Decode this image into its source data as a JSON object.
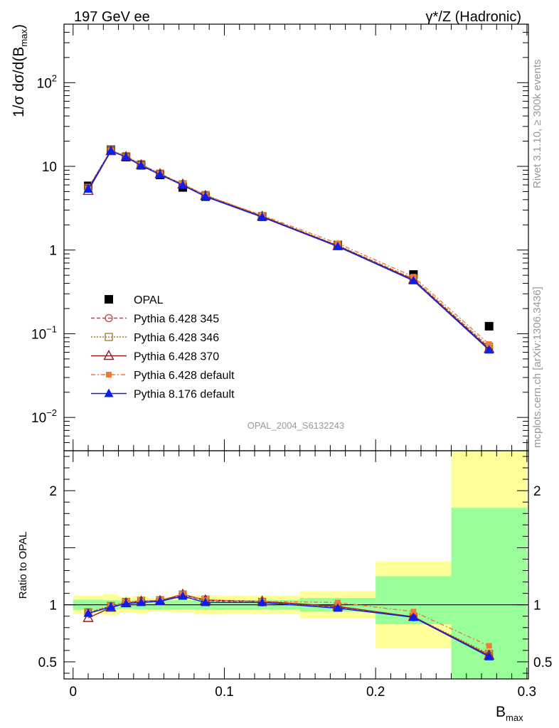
{
  "header": {
    "energy_label": "197 GeV ee",
    "process_label": "γ*/Z (Hadronic)",
    "rivet_label": "Rivet 3.1.10, ≥ 300k events",
    "source_label": "mcplots.cern.ch [arXiv:1306.3436]",
    "analysis_label": "OPAL_2004_S6132243"
  },
  "chart_data": {
    "type": "line",
    "title": "197 GeV ee",
    "xlabel": "B_max",
    "xlabel_main": "B",
    "xlabel_sub": "max",
    "ylabel": "1/σ dσ/d(B_max)",
    "ylabel_main": "1/σ dσ/d(B",
    "ylabel_sub": "max",
    "ylabel_close": ")",
    "ratio_ylabel": "Ratio to OPAL",
    "xlim": [
      -0.006,
      0.301
    ],
    "ylim": [
      0.004,
      500
    ],
    "yscale": "log",
    "ratio_ylim": [
      0.35,
      2.35
    ],
    "x_ticks": [
      "0",
      "0.1",
      "0.2",
      "0.3"
    ],
    "y_tick_labels": [
      {
        "base": "10",
        "exp": "2",
        "value": 100
      },
      {
        "base": "10",
        "exp": "",
        "value": 10
      },
      {
        "base": "1",
        "exp": "",
        "value": 1
      },
      {
        "base": "10",
        "exp": "−1",
        "value": 0.1
      },
      {
        "base": "10",
        "exp": "−2",
        "value": 0.01
      }
    ],
    "ratio_ticks": [
      "0.5",
      "1",
      "2"
    ],
    "ratio_tick_values": [
      0.5,
      1,
      2
    ],
    "x": [
      0.01,
      0.025,
      0.035,
      0.045,
      0.0575,
      0.0725,
      0.0875,
      0.125,
      0.175,
      0.225,
      0.275
    ],
    "bin_edges": [
      0,
      0.02,
      0.03,
      0.04,
      0.05,
      0.065,
      0.08,
      0.1,
      0.15,
      0.2,
      0.25,
      0.3
    ],
    "band_inner": [
      [
        0.955,
        1.045
      ],
      [
        0.96,
        1.04
      ],
      [
        0.965,
        1.035
      ],
      [
        0.96,
        1.04
      ],
      [
        0.96,
        1.04
      ],
      [
        0.96,
        1.04
      ],
      [
        0.955,
        1.045
      ],
      [
        0.96,
        1.04
      ],
      [
        0.94,
        1.06
      ],
      [
        0.83,
        1.25
      ],
      [
        0.0,
        1.85
      ]
    ],
    "band_outer": [
      [
        0.92,
        1.08
      ],
      [
        0.905,
        1.095
      ],
      [
        0.93,
        1.07
      ],
      [
        0.925,
        1.075
      ],
      [
        0.94,
        1.06
      ],
      [
        0.93,
        1.07
      ],
      [
        0.915,
        1.085
      ],
      [
        0.92,
        1.08
      ],
      [
        0.88,
        1.12
      ],
      [
        0.62,
        1.38
      ],
      [
        0.0,
        2.4
      ]
    ],
    "series": [
      {
        "name": "OPAL",
        "marker": "square-filled",
        "color": "#000000",
        "dash": "",
        "legend_line": false,
        "values": [
          5.85,
          15.8,
          12.9,
          10.3,
          7.9,
          5.6,
          4.35,
          2.5,
          1.15,
          0.51,
          0.123
        ],
        "ratio": [
          1,
          1,
          1,
          1,
          1,
          1,
          1,
          1,
          1,
          1,
          1
        ]
      },
      {
        "name": "Pythia 6.428 345",
        "marker": "circle-open",
        "color": "#c0404f",
        "dash": "5,3",
        "legend_line": true,
        "values": [
          5.5,
          15.6,
          13.1,
          10.5,
          8.15,
          6.05,
          4.5,
          2.53,
          1.13,
          0.45,
          0.068
        ],
        "ratio": [
          0.93,
          0.985,
          1.02,
          1.03,
          1.035,
          1.085,
          1.035,
          1.02,
          0.975,
          0.89,
          0.56
        ]
      },
      {
        "name": "Pythia 6.428 346",
        "marker": "square-open",
        "color": "#a07828",
        "dash": "2,2",
        "legend_line": true,
        "values": [
          5.55,
          15.7,
          13.2,
          10.6,
          8.2,
          6.1,
          4.55,
          2.55,
          1.14,
          0.455,
          0.07
        ],
        "ratio": [
          0.935,
          0.99,
          1.025,
          1.035,
          1.04,
          1.09,
          1.045,
          1.025,
          0.98,
          0.895,
          0.57
        ]
      },
      {
        "name": "Pythia 6.428 370",
        "marker": "triangle-open",
        "color": "#902020",
        "dash": "",
        "legend_line": true,
        "values": [
          5.1,
          15.2,
          13.0,
          10.4,
          8.1,
          6.1,
          4.45,
          2.52,
          1.12,
          0.44,
          0.066
        ],
        "ratio": [
          0.885,
          0.975,
          1.015,
          1.03,
          1.035,
          1.09,
          1.04,
          1.03,
          0.985,
          0.895,
          0.555
        ]
      },
      {
        "name": "Pythia 6.428 default",
        "marker": "square-filled-small",
        "color": "#f07a3a",
        "dash": "6,3,2,3",
        "legend_line": true,
        "values": [
          5.4,
          15.5,
          13.0,
          10.4,
          8.1,
          6.15,
          4.5,
          2.6,
          1.2,
          0.48,
          0.075
        ],
        "ratio": [
          0.92,
          0.985,
          1.02,
          1.03,
          1.04,
          1.095,
          1.04,
          1.03,
          1.02,
          0.94,
          0.64
        ]
      },
      {
        "name": "Pythia 8.176 default",
        "marker": "triangle-filled",
        "color": "#0a1ef0",
        "dash": "",
        "legend_line": true,
        "values": [
          5.35,
          15.3,
          12.9,
          10.2,
          7.95,
          5.95,
          4.35,
          2.47,
          1.1,
          0.43,
          0.064
        ],
        "ratio": [
          0.925,
          0.98,
          1.01,
          1.02,
          1.03,
          1.075,
          1.02,
          1.02,
          0.97,
          0.89,
          0.545
        ]
      }
    ]
  }
}
